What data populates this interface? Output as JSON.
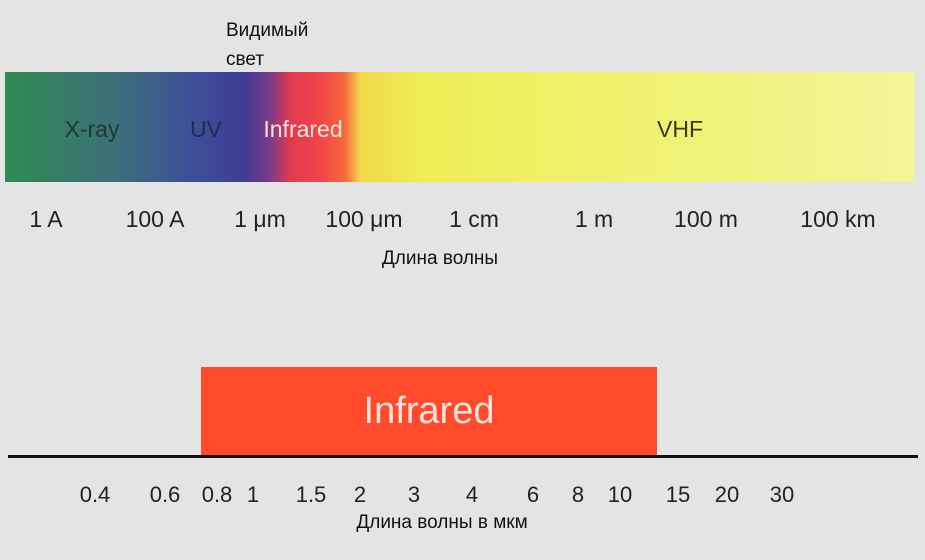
{
  "spectrum": {
    "visible_label": "Видимый свет",
    "bands": [
      "X-ray",
      "UV",
      "Infrared",
      "VHF"
    ],
    "wavelengths": [
      "1 A",
      "100 A",
      "1 μm",
      "100 μm",
      "1 cm",
      "1 m",
      "100 m",
      "100 km"
    ],
    "axis_title": "Длина волны"
  },
  "infrared_scale": {
    "label": "Infrared",
    "ticks": [
      "0.4",
      "0.6",
      "0.8",
      "1",
      "1.5",
      "2",
      "3",
      "4",
      "6",
      "8",
      "10",
      "15",
      "20",
      "30"
    ],
    "axis_title": "Длина волны в мкм"
  }
}
